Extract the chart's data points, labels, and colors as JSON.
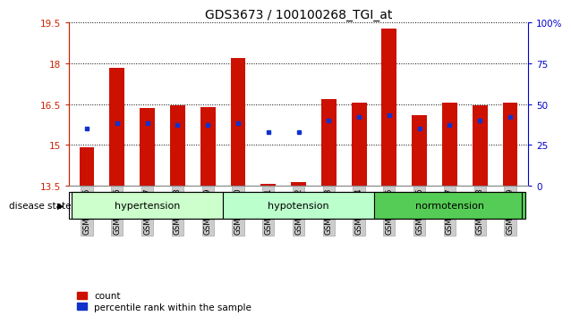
{
  "title": "GDS3673 / 100100268_TGI_at",
  "samples": [
    "GSM493525",
    "GSM493526",
    "GSM493527",
    "GSM493528",
    "GSM493529",
    "GSM493530",
    "GSM493531",
    "GSM493532",
    "GSM493533",
    "GSM493534",
    "GSM493535",
    "GSM493536",
    "GSM493537",
    "GSM493538",
    "GSM493539"
  ],
  "count_values": [
    14.9,
    17.85,
    16.35,
    16.45,
    16.4,
    18.2,
    13.55,
    13.62,
    16.7,
    16.55,
    19.3,
    16.1,
    16.55,
    16.45,
    16.55
  ],
  "percentile_values": [
    35,
    38,
    38,
    37,
    37,
    38,
    33,
    33,
    40,
    42,
    43,
    35,
    37,
    40,
    42
  ],
  "ymin": 13.5,
  "ymax": 19.5,
  "yticks_left": [
    13.5,
    15.0,
    16.5,
    18.0,
    19.5
  ],
  "ytick_labels_left": [
    "13.5",
    "15",
    "16.5",
    "18",
    "19.5"
  ],
  "yticks_right": [
    0,
    25,
    50,
    75,
    100
  ],
  "ytick_labels_right": [
    "0",
    "25",
    "50",
    "75",
    "100%"
  ],
  "groups": [
    {
      "name": "hypertension",
      "start": 0,
      "end": 5,
      "color": "#ccffcc"
    },
    {
      "name": "hypotension",
      "start": 5,
      "end": 10,
      "color": "#aaffcc"
    },
    {
      "name": "normotension",
      "start": 10,
      "end": 15,
      "color": "#55cc55"
    }
  ],
  "bar_color": "#cc1100",
  "dot_color": "#1133cc",
  "bar_width": 0.5,
  "tick_color_left": "#cc2200",
  "tick_color_right": "#0000cc",
  "bg_xticklabel": "#cccccc",
  "dot_size": 3.5
}
